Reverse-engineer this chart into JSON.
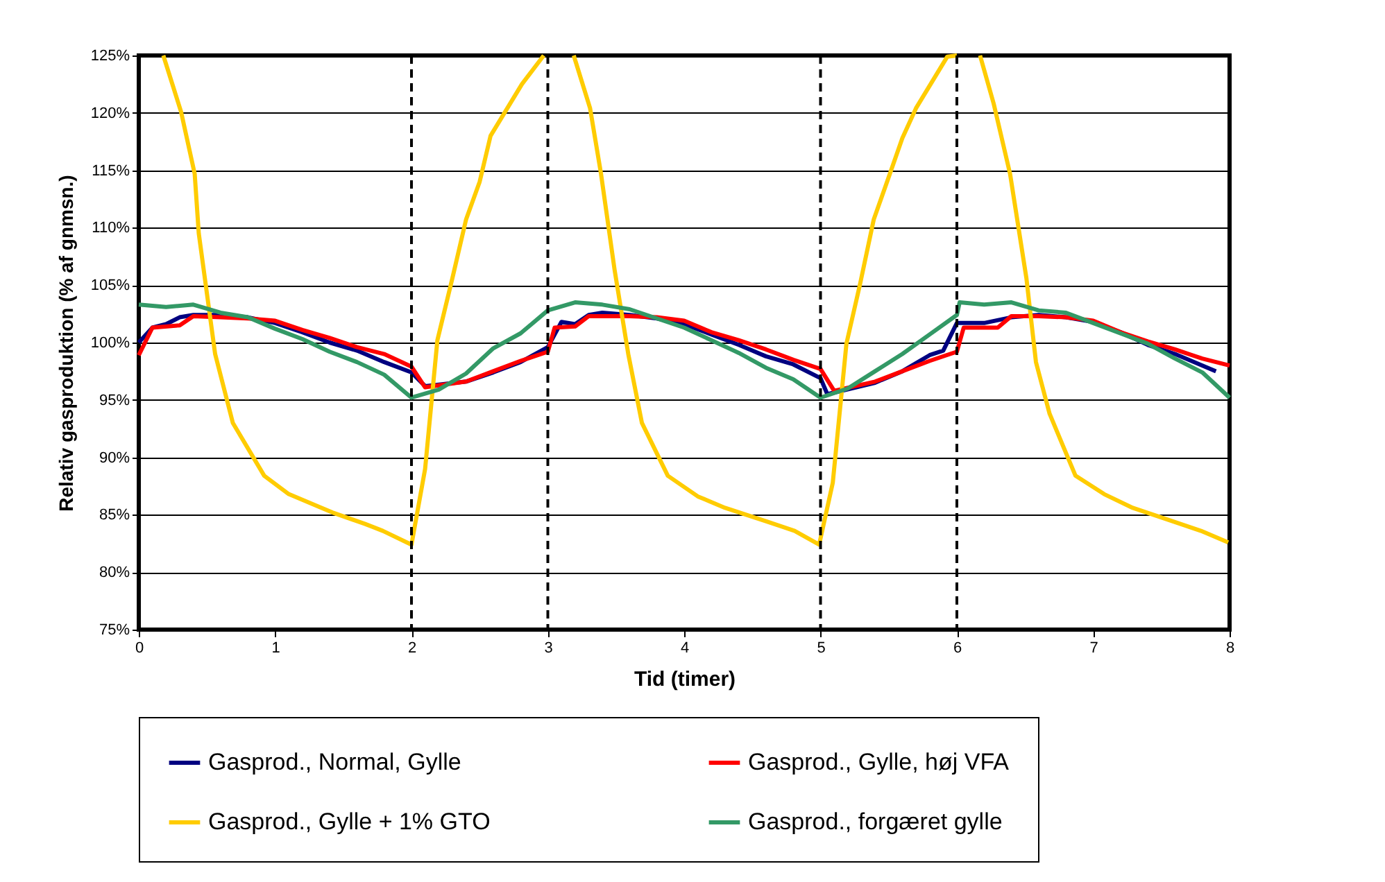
{
  "chart_data": {
    "type": "line",
    "xlabel": "Tid (timer)",
    "ylabel": "Relativ gasproduktion (% af gnmsn.)",
    "xlim": [
      0,
      8
    ],
    "xticks": [
      0,
      1,
      2,
      3,
      4,
      5,
      6,
      7,
      8
    ],
    "ylim": [
      75,
      125
    ],
    "yticks": [
      {
        "value": 75,
        "label": "75%"
      },
      {
        "value": 80,
        "label": "80%"
      },
      {
        "value": 85,
        "label": "85%"
      },
      {
        "value": 90,
        "label": "90%"
      },
      {
        "value": 95,
        "label": "95%"
      },
      {
        "value": 100,
        "label": "100%"
      },
      {
        "value": 105,
        "label": "105%"
      },
      {
        "value": 110,
        "label": "110%"
      },
      {
        "value": 115,
        "label": "115%"
      },
      {
        "value": 120,
        "label": "120%"
      },
      {
        "value": 125,
        "label": "125%"
      }
    ],
    "grid": "y",
    "legend": "bottom",
    "marker": "none",
    "line_style": "solid",
    "ref_lines": [
      {
        "axis": "x",
        "value": 2,
        "color": "#000000",
        "line_style": "dashed"
      },
      {
        "axis": "x",
        "value": 3,
        "color": "#000000",
        "line_style": "dashed"
      },
      {
        "axis": "x",
        "value": 5,
        "color": "#000000",
        "line_style": "dashed"
      },
      {
        "axis": "x",
        "value": 6,
        "color": "#000000",
        "line_style": "dashed"
      }
    ],
    "series": [
      {
        "name": "Gasprod., Normal, Gylle",
        "color": "#000080",
        "x": [
          0,
          0.1,
          0.2,
          0.3,
          0.4,
          0.6,
          0.8,
          1.0,
          1.2,
          1.4,
          1.6,
          1.8,
          2.0,
          2.1,
          2.4,
          2.6,
          2.8,
          3.0,
          3.1,
          3.2,
          3.3,
          3.4,
          3.6,
          3.8,
          4.0,
          4.2,
          4.4,
          4.6,
          4.8,
          5.0,
          5.05,
          5.4,
          5.6,
          5.8,
          5.9,
          6.0,
          6.2,
          6.4,
          6.6,
          6.8,
          7.0,
          7.2,
          7.4,
          7.6,
          7.9
        ],
        "values": [
          100,
          101.3,
          101.6,
          102.2,
          102.4,
          102.4,
          102.2,
          101.7,
          100.9,
          100,
          99.3,
          98.3,
          97.4,
          96.2,
          96.6,
          97.4,
          98.3,
          99.6,
          101.8,
          101.6,
          102.4,
          102.6,
          102.4,
          102.1,
          101.6,
          100.7,
          99.8,
          98.8,
          98.1,
          96.9,
          95.5,
          96.5,
          97.5,
          98.9,
          99.3,
          101.7,
          101.7,
          102.2,
          102.4,
          102.2,
          101.8,
          100.9,
          99.8,
          99,
          97.5
        ]
      },
      {
        "name": "Gasprod., Gylle, høj VFA",
        "color": "#ff0000",
        "x": [
          0,
          0.1,
          0.3,
          0.4,
          0.6,
          0.8,
          1.0,
          1.2,
          1.4,
          1.6,
          1.8,
          2.0,
          2.1,
          2.4,
          2.6,
          2.8,
          3.0,
          3.05,
          3.2,
          3.3,
          3.6,
          3.8,
          4.0,
          4.2,
          4.4,
          4.6,
          4.8,
          5.0,
          5.1,
          5.4,
          5.6,
          5.8,
          6.0,
          6.05,
          6.3,
          6.4,
          6.6,
          6.8,
          7.0,
          7.2,
          7.4,
          7.6,
          7.8,
          8.0
        ],
        "values": [
          98.9,
          101.3,
          101.5,
          102.3,
          102.2,
          102.1,
          101.9,
          101.1,
          100.4,
          99.6,
          99,
          97.9,
          96.1,
          96.6,
          97.5,
          98.4,
          99.2,
          101.3,
          101.4,
          102.3,
          102.3,
          102.2,
          101.9,
          100.9,
          100.2,
          99.4,
          98.5,
          97.7,
          95.8,
          96.6,
          97.5,
          98.4,
          99.2,
          101.3,
          101.3,
          102.3,
          102.3,
          102.2,
          101.9,
          100.9,
          100.1,
          99.4,
          98.6,
          98
        ]
      },
      {
        "name": "Gasprod., Gylle + 1% GTO",
        "color": "#ffcc00",
        "x": [
          0.18,
          0.31,
          0.41,
          0.44,
          0.56,
          0.69,
          0.92,
          1.1,
          1.32,
          1.42,
          1.66,
          1.79,
          2.0,
          2.1,
          2.19,
          2.3,
          2.4,
          2.5,
          2.58,
          2.81,
          2.97,
          3.08,
          3.19,
          3.31,
          3.39,
          3.49,
          3.59,
          3.69,
          3.88,
          4.1,
          4.3,
          4.61,
          4.81,
          4.99,
          5.09,
          5.19,
          5.29,
          5.39,
          5.5,
          5.6,
          5.7,
          5.93,
          6.0,
          6.08,
          6.17,
          6.27,
          6.39,
          6.51,
          6.58,
          6.68,
          6.87,
          7.08,
          7.29,
          7.49,
          7.79,
          7.99
        ],
        "values": [
          125,
          120.1,
          114.7,
          109.5,
          99,
          93,
          88.4,
          86.8,
          85.7,
          85.2,
          84.2,
          83.6,
          82.4,
          89,
          100.2,
          105.6,
          110.7,
          114,
          118,
          122.5,
          125,
          null,
          125,
          120.4,
          114.7,
          106.3,
          99,
          93,
          88.4,
          86.6,
          85.6,
          84.4,
          83.6,
          82.4,
          87.8,
          99.9,
          105.1,
          110.7,
          114.4,
          117.8,
          120.4,
          124.9,
          125,
          null,
          125,
          120.8,
          114.7,
          105.6,
          98.3,
          93.8,
          88.4,
          86.8,
          85.6,
          84.8,
          83.6,
          82.6
        ]
      },
      {
        "name": "Gasprod., forgæret gylle",
        "color": "#339966",
        "x": [
          0,
          0.2,
          0.4,
          0.6,
          0.8,
          1.0,
          1.2,
          1.4,
          1.6,
          1.8,
          2.0,
          2.2,
          2.4,
          2.6,
          2.8,
          3.0,
          3.2,
          3.4,
          3.6,
          3.8,
          4.0,
          4.2,
          4.4,
          4.6,
          4.8,
          5.0,
          5.2,
          5.4,
          5.6,
          5.8,
          6.0,
          6.02,
          6.2,
          6.4,
          6.6,
          6.8,
          7.0,
          7.2,
          7.4,
          7.6,
          7.8,
          8.0
        ],
        "values": [
          103.3,
          103.1,
          103.3,
          102.6,
          102.2,
          101.2,
          100.3,
          99.2,
          98.3,
          97.2,
          95.2,
          95.9,
          97.3,
          99.5,
          100.8,
          102.8,
          103.5,
          103.3,
          102.9,
          102.1,
          101.3,
          100.2,
          99.1,
          97.8,
          96.8,
          95.2,
          96,
          97.5,
          99,
          100.7,
          102.4,
          103.5,
          103.3,
          103.5,
          102.8,
          102.6,
          101.7,
          100.8,
          99.9,
          98.6,
          97.4,
          95.2
        ]
      }
    ]
  }
}
